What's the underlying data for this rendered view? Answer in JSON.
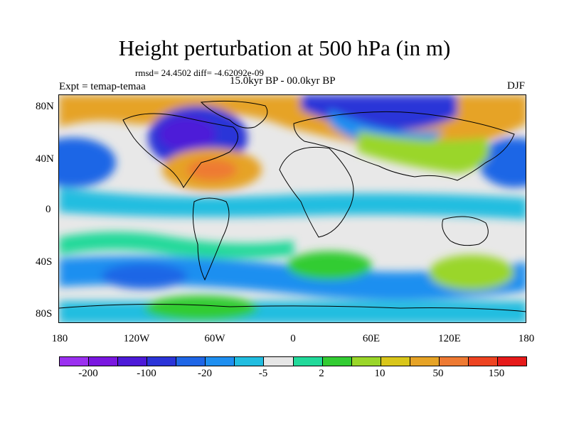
{
  "title": "Height perturbation at 500 hPa (in m)",
  "stats": "rmsd= 24.4502 diff= -4.62092e-09",
  "period": "15.0kyr BP - 00.0kyr BP",
  "experiment": "Expt = temap-temaa",
  "season": "DJF",
  "map": {
    "lat_ticks": [
      "80N",
      "40N",
      "0",
      "40S",
      "80S"
    ],
    "lon_ticks": [
      "180",
      "120W",
      "60W",
      "0",
      "60E",
      "120E",
      "180"
    ]
  },
  "colorbar": {
    "colors": [
      "#9b30f0",
      "#7a17e0",
      "#4d1ad8",
      "#2b34d8",
      "#1f66e6",
      "#1f8ff0",
      "#22bde0",
      "#e6e6e6",
      "#22d99a",
      "#33cc33",
      "#9ad629",
      "#d9c61a",
      "#e6a326",
      "#ee7a33",
      "#ee4422",
      "#e61a1a"
    ],
    "labels": [
      "-200",
      "-100",
      "-20",
      "-5",
      "2",
      "10",
      "50",
      "150"
    ]
  }
}
